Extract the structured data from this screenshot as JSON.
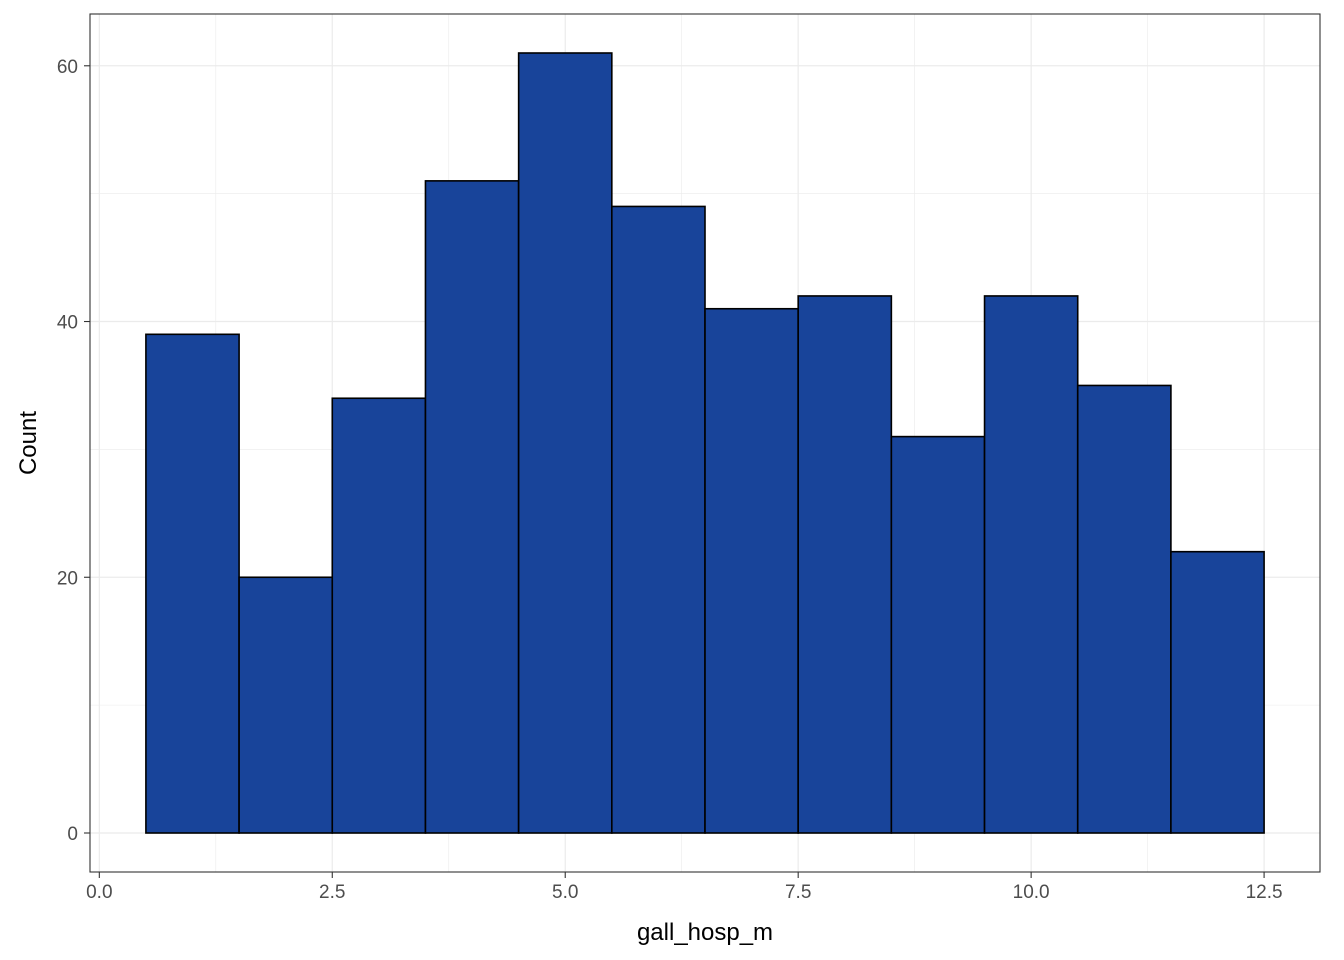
{
  "chart_data": {
    "type": "bar",
    "subtype": "histogram",
    "title": "",
    "xlabel": "gall_hosp_m",
    "ylabel": "Count",
    "xlim": [
      -0.1,
      13.1
    ],
    "ylim": [
      -3.05,
      64.05
    ],
    "x_ticks": [
      0.0,
      2.5,
      5.0,
      7.5,
      10.0,
      12.5
    ],
    "x_tick_labels": [
      "0.0",
      "2.5",
      "5.0",
      "7.5",
      "10.0",
      "12.5"
    ],
    "y_ticks": [
      0,
      20,
      40,
      60
    ],
    "y_tick_labels": [
      "0",
      "20",
      "40",
      "60"
    ],
    "bin_width": 1,
    "bins": [
      {
        "center": 1,
        "count": 39
      },
      {
        "center": 2,
        "count": 20
      },
      {
        "center": 3,
        "count": 34
      },
      {
        "center": 4,
        "count": 51
      },
      {
        "center": 5,
        "count": 61
      },
      {
        "center": 6,
        "count": 49
      },
      {
        "center": 7,
        "count": 41
      },
      {
        "center": 8,
        "count": 42
      },
      {
        "center": 9,
        "count": 31
      },
      {
        "center": 10,
        "count": 42
      },
      {
        "center": 11,
        "count": 35
      },
      {
        "center": 12,
        "count": 22
      }
    ],
    "bar_fill": "#18449a",
    "bar_outline": "#000000",
    "grid": true,
    "grid_color": "#ebebeb",
    "legend": "none"
  }
}
